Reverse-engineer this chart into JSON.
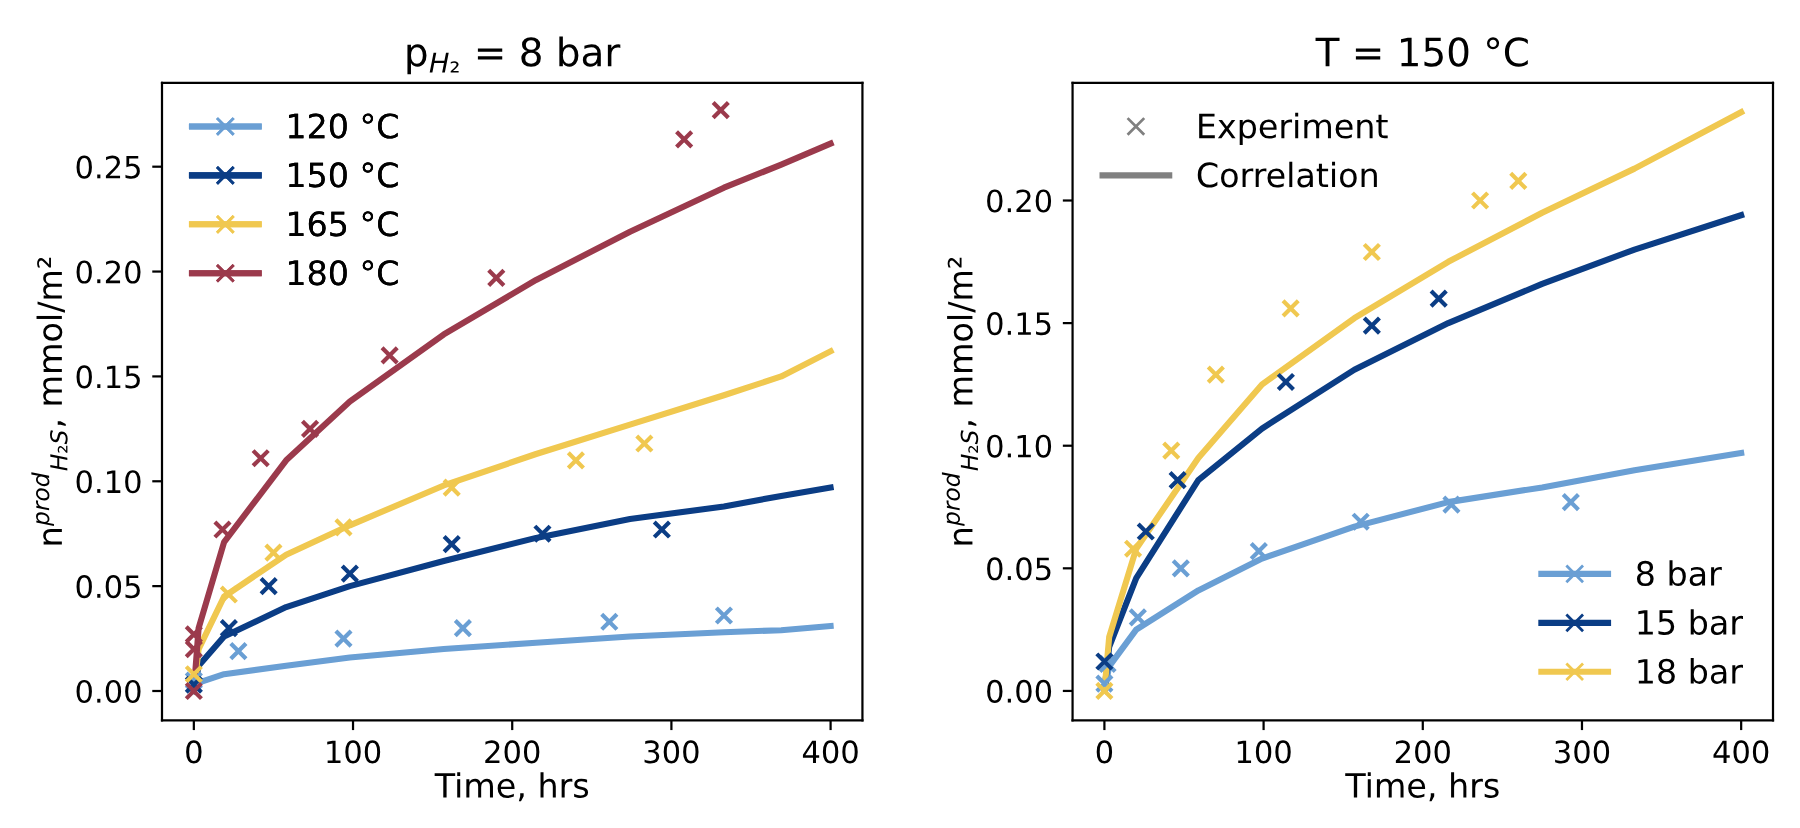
{
  "chart_data": [
    {
      "type": "scatter",
      "title": "p$_{H₂}$ = 8 bar",
      "xlabel": "Time, hrs",
      "ylabel": "n$^{prod}$$_{H₂S}$, mmol/m²",
      "xlim": [
        -20,
        420
      ],
      "xticks": [
        0,
        100,
        200,
        300,
        400
      ],
      "ylim": [
        -0.014,
        0.29
      ],
      "yticks": [
        {
          "value": 0,
          "label": "0.00"
        },
        {
          "value": 0.05,
          "label": "0.05"
        },
        {
          "value": 0.1,
          "label": "0.10"
        },
        {
          "value": 0.15,
          "label": "0.15"
        },
        {
          "value": 0.2,
          "label": "0.20"
        },
        {
          "value": 0.25,
          "label": "0.25"
        }
      ],
      "grid": false,
      "legend": "top left",
      "series": [
        {
          "name": "120 °C",
          "marker": "cross",
          "color": "#6a9fd4",
          "x": [
            0,
            28,
            94,
            169,
            261,
            333
          ],
          "values": [
            0.005,
            0.019,
            0.025,
            0.03,
            0.033,
            0.036
          ]
        },
        {
          "name": "150 °C",
          "marker": "cross",
          "color": "#0b3d85",
          "x": [
            0,
            22,
            47,
            98,
            162,
            219,
            294
          ],
          "values": [
            0.003,
            0.03,
            0.05,
            0.056,
            0.07,
            0.075,
            0.077
          ]
        },
        {
          "name": "165 °C",
          "marker": "cross",
          "color": "#f0c850",
          "x": [
            0,
            22,
            50,
            94,
            162,
            240,
            283
          ],
          "values": [
            0.008,
            0.046,
            0.066,
            0.078,
            0.097,
            0.11,
            0.118
          ]
        },
        {
          "name": "180 °C",
          "marker": "cross",
          "color": "#9b3a4c",
          "x": [
            0,
            0,
            0,
            18,
            42,
            73,
            123,
            190,
            308,
            331
          ],
          "values": [
            0,
            0.02,
            0.027,
            0.077,
            0.111,
            0.125,
            0.16,
            0.197,
            0.263,
            0.277
          ]
        },
        {
          "type": "line",
          "color": "#6a9fd4",
          "x": [
            0,
            3,
            19,
            58,
            98,
            157,
            215,
            274,
            333,
            369,
            400
          ],
          "values": [
            0,
            0.004,
            0.008,
            0.012,
            0.016,
            0.02,
            0.023,
            0.026,
            0.028,
            0.029,
            0.031
          ]
        },
        {
          "type": "line",
          "color": "#0b3d85",
          "x": [
            0,
            3,
            19,
            58,
            98,
            157,
            215,
            274,
            333,
            369,
            400
          ],
          "values": [
            0,
            0.012,
            0.026,
            0.04,
            0.05,
            0.062,
            0.073,
            0.082,
            0.088,
            0.093,
            0.097
          ]
        },
        {
          "type": "line",
          "color": "#f0c850",
          "x": [
            0,
            3,
            19,
            58,
            98,
            157,
            215,
            274,
            333,
            369,
            400
          ],
          "values": [
            0,
            0.02,
            0.045,
            0.065,
            0.079,
            0.098,
            0.113,
            0.127,
            0.141,
            0.15,
            0.162
          ]
        },
        {
          "type": "line",
          "color": "#9b3a4c",
          "x": [
            0,
            3,
            19,
            58,
            98,
            157,
            215,
            274,
            333,
            369,
            400
          ],
          "values": [
            0,
            0.03,
            0.071,
            0.11,
            0.138,
            0.17,
            0.196,
            0.219,
            0.24,
            0.251,
            0.261
          ]
        }
      ]
    },
    {
      "type": "scatter",
      "title": "T = 150 °C",
      "xlabel": "Time, hrs",
      "ylabel": "n$^{prod}$$_{H₂S}$, mmol/m²",
      "xlim": [
        -20,
        420
      ],
      "xticks": [
        0,
        100,
        200,
        300,
        400
      ],
      "ylim": [
        -0.012,
        0.248
      ],
      "yticks": [
        {
          "value": 0,
          "label": "0.00"
        },
        {
          "value": 0.05,
          "label": "0.05"
        },
        {
          "value": 0.1,
          "label": "0.10"
        },
        {
          "value": 0.15,
          "label": "0.15"
        },
        {
          "value": 0.2,
          "label": "0.20"
        }
      ],
      "grid": false,
      "legend": "bottom right",
      "annotations": [
        "Experiment",
        "Correlation"
      ],
      "series": [
        {
          "name": "8 bar",
          "marker": "cross",
          "color": "#6a9fd4",
          "x": [
            0,
            2,
            21,
            48,
            97,
            161,
            218,
            293
          ],
          "values": [
            0.003,
            0.011,
            0.03,
            0.05,
            0.057,
            0.069,
            0.076,
            0.077
          ]
        },
        {
          "name": "15 bar",
          "marker": "cross",
          "color": "#0b3d85",
          "x": [
            0,
            26,
            46,
            114,
            168,
            210
          ],
          "values": [
            0.012,
            0.065,
            0.086,
            0.126,
            0.149,
            0.16
          ]
        },
        {
          "name": "18 bar",
          "marker": "cross",
          "color": "#f0c850",
          "x": [
            0,
            18,
            42,
            70,
            117,
            168,
            236,
            260
          ],
          "values": [
            0,
            0.058,
            0.098,
            0.129,
            0.156,
            0.179,
            0.2,
            0.208
          ]
        },
        {
          "type": "line",
          "color": "#6a9fd4",
          "x": [
            0,
            3,
            20,
            59,
            99,
            157,
            216,
            275,
            333,
            400
          ],
          "values": [
            0,
            0.01,
            0.025,
            0.041,
            0.054,
            0.067,
            0.077,
            0.083,
            0.09,
            0.097
          ]
        },
        {
          "type": "line",
          "color": "#0b3d85",
          "x": [
            0,
            3,
            20,
            59,
            99,
            157,
            216,
            275,
            333,
            400
          ],
          "values": [
            0,
            0.018,
            0.046,
            0.086,
            0.107,
            0.131,
            0.15,
            0.166,
            0.18,
            0.194
          ]
        },
        {
          "type": "line",
          "color": "#f0c850",
          "x": [
            0,
            3,
            20,
            59,
            99,
            157,
            216,
            275,
            333,
            400
          ],
          "values": [
            0,
            0.022,
            0.058,
            0.095,
            0.125,
            0.152,
            0.175,
            0.195,
            0.213,
            0.236
          ]
        }
      ]
    }
  ]
}
